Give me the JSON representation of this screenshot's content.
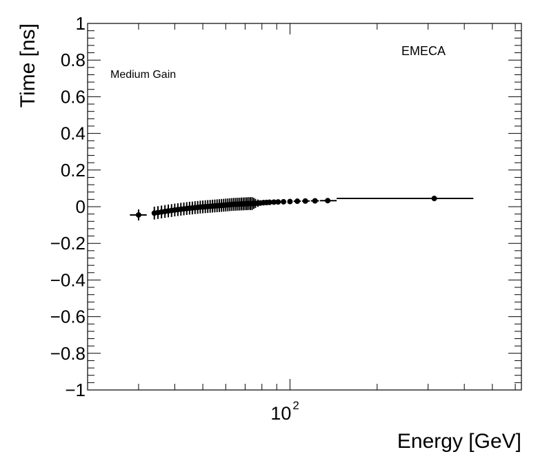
{
  "chart_data": {
    "type": "scatter",
    "title": "",
    "xlabel": "Energy [GeV]",
    "ylabel": "Time [ns]",
    "xscale": "log",
    "xlim": [
      20,
      630
    ],
    "ylim": [
      -1,
      1
    ],
    "x_tick_label": {
      "value": 100,
      "base": "10",
      "exponent": "2"
    },
    "y_ticks": [
      -1,
      -0.8,
      -0.6,
      -0.4,
      -0.2,
      0,
      0.2,
      0.4,
      0.6,
      0.8,
      1
    ],
    "y_tick_labels": [
      "−1",
      "−0.8",
      "−0.6",
      "−0.4",
      "−0.2",
      "0",
      "0.2",
      "0.4",
      "0.6",
      "0.8",
      "1"
    ],
    "annotations": {
      "region": "EMECA",
      "gain": "Medium Gain"
    },
    "series": [
      {
        "name": "EMECA Medium Gain",
        "points": [
          {
            "x": 30.0,
            "y": -0.045,
            "xerr": [
              28.0,
              32.0
            ],
            "yerr": 0.03
          },
          {
            "x": 34.0,
            "y": -0.035,
            "xerr": [
              33.5,
              34.5
            ],
            "yerr": 0.035
          },
          {
            "x": 35.0,
            "y": -0.032,
            "xerr": [
              34.5,
              35.5
            ],
            "yerr": 0.035
          },
          {
            "x": 36.0,
            "y": -0.029,
            "xerr": [
              35.5,
              36.5
            ],
            "yerr": 0.035
          },
          {
            "x": 37.0,
            "y": -0.026,
            "xerr": [
              36.5,
              37.5
            ],
            "yerr": 0.035
          },
          {
            "x": 38.0,
            "y": -0.023,
            "xerr": [
              37.5,
              38.5
            ],
            "yerr": 0.035
          },
          {
            "x": 39.0,
            "y": -0.021,
            "xerr": [
              38.5,
              39.5
            ],
            "yerr": 0.035
          },
          {
            "x": 40.0,
            "y": -0.018,
            "xerr": [
              39.5,
              40.5
            ],
            "yerr": 0.035
          },
          {
            "x": 41.0,
            "y": -0.016,
            "xerr": [
              40.5,
              41.5
            ],
            "yerr": 0.035
          },
          {
            "x": 42.0,
            "y": -0.014,
            "xerr": [
              41.5,
              42.5
            ],
            "yerr": 0.035
          },
          {
            "x": 43.0,
            "y": -0.012,
            "xerr": [
              42.5,
              43.5
            ],
            "yerr": 0.035
          },
          {
            "x": 44.0,
            "y": -0.01,
            "xerr": [
              43.5,
              44.5
            ],
            "yerr": 0.035
          },
          {
            "x": 45.0,
            "y": -0.008,
            "xerr": [
              44.5,
              45.5
            ],
            "yerr": 0.035
          },
          {
            "x": 46.0,
            "y": -0.007,
            "xerr": [
              45.5,
              46.5
            ],
            "yerr": 0.035
          },
          {
            "x": 47.0,
            "y": -0.005,
            "xerr": [
              46.5,
              47.5
            ],
            "yerr": 0.035
          },
          {
            "x": 48.0,
            "y": -0.004,
            "xerr": [
              47.5,
              48.5
            ],
            "yerr": 0.035
          },
          {
            "x": 49.0,
            "y": -0.002,
            "xerr": [
              48.5,
              49.5
            ],
            "yerr": 0.035
          },
          {
            "x": 50.0,
            "y": -0.001,
            "xerr": [
              49.5,
              50.5
            ],
            "yerr": 0.035
          },
          {
            "x": 51.0,
            "y": 0.0,
            "xerr": [
              50.5,
              51.5
            ],
            "yerr": 0.035
          },
          {
            "x": 52.0,
            "y": 0.001,
            "xerr": [
              51.5,
              52.5
            ],
            "yerr": 0.035
          },
          {
            "x": 53.0,
            "y": 0.002,
            "xerr": [
              52.5,
              53.5
            ],
            "yerr": 0.035
          },
          {
            "x": 54.0,
            "y": 0.003,
            "xerr": [
              53.5,
              54.5
            ],
            "yerr": 0.035
          },
          {
            "x": 55.0,
            "y": 0.004,
            "xerr": [
              54.5,
              55.5
            ],
            "yerr": 0.035
          },
          {
            "x": 56.0,
            "y": 0.005,
            "xerr": [
              55.5,
              56.5
            ],
            "yerr": 0.035
          },
          {
            "x": 57.0,
            "y": 0.006,
            "xerr": [
              56.5,
              57.5
            ],
            "yerr": 0.035
          },
          {
            "x": 58.0,
            "y": 0.007,
            "xerr": [
              57.5,
              58.5
            ],
            "yerr": 0.035
          },
          {
            "x": 59.0,
            "y": 0.008,
            "xerr": [
              58.5,
              59.5
            ],
            "yerr": 0.035
          },
          {
            "x": 60.0,
            "y": 0.009,
            "xerr": [
              59.5,
              60.5
            ],
            "yerr": 0.035
          },
          {
            "x": 61.0,
            "y": 0.01,
            "xerr": [
              60.5,
              61.5
            ],
            "yerr": 0.035
          },
          {
            "x": 62.0,
            "y": 0.011,
            "xerr": [
              61.5,
              62.5
            ],
            "yerr": 0.035
          },
          {
            "x": 63.0,
            "y": 0.012,
            "xerr": [
              62.5,
              63.5
            ],
            "yerr": 0.035
          },
          {
            "x": 64.0,
            "y": 0.013,
            "xerr": [
              63.5,
              64.5
            ],
            "yerr": 0.035
          },
          {
            "x": 65.0,
            "y": 0.013,
            "xerr": [
              64.5,
              65.5
            ],
            "yerr": 0.035
          },
          {
            "x": 66.0,
            "y": 0.014,
            "xerr": [
              65.5,
              66.5
            ],
            "yerr": 0.035
          },
          {
            "x": 67.0,
            "y": 0.014,
            "xerr": [
              66.5,
              67.5
            ],
            "yerr": 0.035
          },
          {
            "x": 68.0,
            "y": 0.015,
            "xerr": [
              67.5,
              68.5
            ],
            "yerr": 0.035
          },
          {
            "x": 69.0,
            "y": 0.015,
            "xerr": [
              68.5,
              69.5
            ],
            "yerr": 0.035
          },
          {
            "x": 70.0,
            "y": 0.016,
            "xerr": [
              69.5,
              70.5
            ],
            "yerr": 0.035
          },
          {
            "x": 71.0,
            "y": 0.016,
            "xerr": [
              70.5,
              71.5
            ],
            "yerr": 0.035
          },
          {
            "x": 72.0,
            "y": 0.017,
            "xerr": [
              71.5,
              72.5
            ],
            "yerr": 0.035
          },
          {
            "x": 73.0,
            "y": 0.017,
            "xerr": [
              72.5,
              73.5
            ],
            "yerr": 0.035
          },
          {
            "x": 74.0,
            "y": 0.017,
            "xerr": [
              73.5,
              74.5
            ],
            "yerr": 0.035
          },
          {
            "x": 75.0,
            "y": 0.018,
            "xerr": [
              74.5,
              75.5
            ],
            "yerr": 0.03
          },
          {
            "x": 76.0,
            "y": 0.018,
            "xerr": [
              75.5,
              76.5
            ],
            "yerr": 0.025
          },
          {
            "x": 77.5,
            "y": 0.019,
            "xerr": [
              77.0,
              78.0
            ],
            "yerr": 0.02
          },
          {
            "x": 79.0,
            "y": 0.02,
            "xerr": [
              78.5,
              79.5
            ],
            "yerr": 0.015
          },
          {
            "x": 81.0,
            "y": 0.022,
            "xerr": [
              80.5,
              81.5
            ],
            "yerr": 0.015
          },
          {
            "x": 83.0,
            "y": 0.023,
            "xerr": [
              82.5,
              83.5
            ],
            "yerr": 0.015
          },
          {
            "x": 85.0,
            "y": 0.024,
            "xerr": [
              84.0,
              86.0
            ],
            "yerr": 0.015
          },
          {
            "x": 88.0,
            "y": 0.025,
            "xerr": [
              87.0,
              89.0
            ],
            "yerr": 0.01
          },
          {
            "x": 91.0,
            "y": 0.026,
            "xerr": [
              90.0,
              92.0
            ],
            "yerr": 0.01
          },
          {
            "x": 95.0,
            "y": 0.027,
            "xerr": [
              94.0,
              96.5
            ],
            "yerr": 0.008
          },
          {
            "x": 100.0,
            "y": 0.028,
            "xerr": [
              98.5,
              102.0
            ],
            "yerr": 0.008
          },
          {
            "x": 106.0,
            "y": 0.03,
            "xerr": [
              103.0,
              109.0
            ],
            "yerr": 0.008
          },
          {
            "x": 113.0,
            "y": 0.031,
            "xerr": [
              110.0,
              117.0
            ],
            "yerr": 0.008
          },
          {
            "x": 122.0,
            "y": 0.032,
            "xerr": [
              118.0,
              126.0
            ],
            "yerr": 0.008
          },
          {
            "x": 135.0,
            "y": 0.033,
            "xerr": [
              127.0,
              145.0
            ],
            "yerr": 0.008
          },
          {
            "x": 315.0,
            "y": 0.045,
            "xerr": [
              145.0,
              430.0
            ],
            "yerr": 0.01
          }
        ]
      }
    ]
  }
}
